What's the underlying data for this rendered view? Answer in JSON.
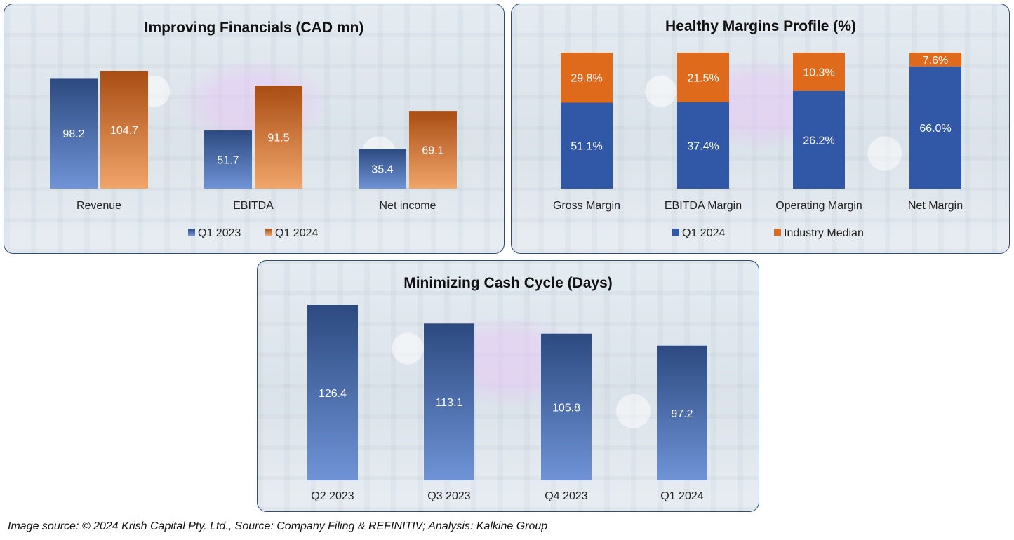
{
  "footer": "Image source: © 2024 Krish Capital Pty. Ltd., Source: Company Filing & REFINITIV; Analysis: Kalkine Group",
  "colors": {
    "blue_top": "#2c4a80",
    "blue_bottom": "#6f93d6",
    "orange_top": "#a94d14",
    "orange_bottom": "#f0a56a",
    "stack_blue": "#3058a6",
    "stack_orange": "#e06a1c"
  },
  "chart_data": [
    {
      "id": "financials",
      "type": "bar",
      "title": "Improving Financials (CAD mn)",
      "categories": [
        "Revenue",
        "EBITDA",
        "Net income"
      ],
      "series": [
        {
          "name": "Q1 2023",
          "values": [
            98.2,
            51.7,
            35.4
          ],
          "color": "blue"
        },
        {
          "name": "Q1 2024",
          "values": [
            104.7,
            91.5,
            69.1
          ],
          "color": "orange"
        }
      ],
      "ylim": [
        0,
        104.7
      ],
      "grid": false,
      "legend": "bottom",
      "xlabel": "",
      "ylabel": ""
    },
    {
      "id": "margins",
      "type": "bar",
      "stacked": "percent",
      "title": "Healthy Margins Profile (%)",
      "categories": [
        "Gross Margin",
        "EBITDA Margin",
        "Operating Margin",
        "Net Margin"
      ],
      "series": [
        {
          "name": "Q1 2024",
          "values": [
            51.1,
            37.4,
            26.2,
            66.0
          ],
          "labels": [
            "51.1%",
            "37.4%",
            "26.2%",
            "66.0%"
          ],
          "color": "stack_blue"
        },
        {
          "name": "Industry Median",
          "values": [
            29.8,
            21.5,
            10.3,
            7.6
          ],
          "labels": [
            "29.8%",
            "21.5%",
            "10.3%",
            "7.6%"
          ],
          "color": "stack_orange"
        }
      ],
      "grid": false,
      "legend": "bottom",
      "xlabel": "",
      "ylabel": ""
    },
    {
      "id": "cashcycle",
      "type": "bar",
      "title": "Minimizing Cash Cycle (Days)",
      "categories": [
        "Q2 2023",
        "Q3 2023",
        "Q4 2023",
        "Q1 2024"
      ],
      "values": [
        126.4,
        113.1,
        105.8,
        97.2
      ],
      "ylim": [
        0,
        126.4
      ],
      "grid": false,
      "legend": "none",
      "xlabel": "",
      "ylabel": ""
    }
  ]
}
